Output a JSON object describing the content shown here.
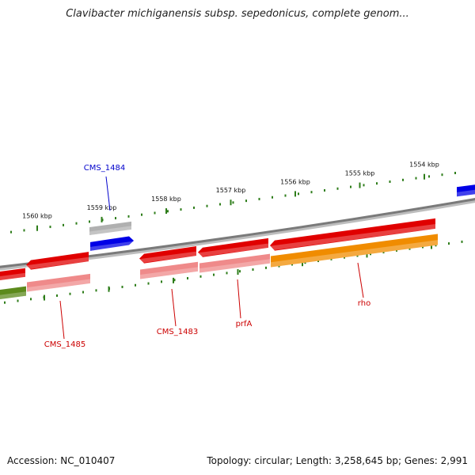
{
  "title": "Clavibacter michiganensis subsp. sepedonicus, complete genom...",
  "footer": {
    "accession": "Accession: NC_010407",
    "summary": "Topology: circular; Length: 3,258,645 bp; Genes: 2,991"
  },
  "colors": {
    "backbone": "#7a7a7a",
    "tick": "#2e7d1a",
    "cds_red": "#e00000",
    "cds_pink": "#ef8a8a",
    "cds_blue": "#0000e6",
    "cds_grey": "#b0b0b0",
    "cds_orange": "#f08c00",
    "cds_olive": "#5c8a1c",
    "label_red": "#cc0000",
    "label_blue": "#0000cc"
  },
  "scale": {
    "unit": "kbp",
    "major_ticks": [
      {
        "kbp": 1554,
        "label": "1554 kbp"
      },
      {
        "kbp": 1555,
        "label": "1555 kbp"
      },
      {
        "kbp": 1556,
        "label": "1556 kbp"
      },
      {
        "kbp": 1557,
        "label": "1557 kbp"
      },
      {
        "kbp": 1558,
        "label": "1558 kbp"
      },
      {
        "kbp": 1559,
        "label": "1559 kbp"
      },
      {
        "kbp": 1560,
        "label": "1560 kbp"
      }
    ]
  },
  "gene_labels": [
    {
      "name": "CMS_1484",
      "color": "blue"
    },
    {
      "name": "CMS_1485",
      "color": "red"
    },
    {
      "name": "CMS_1483",
      "color": "red"
    },
    {
      "name": "prfA",
      "color": "red"
    },
    {
      "name": "rho",
      "color": "red"
    }
  ]
}
